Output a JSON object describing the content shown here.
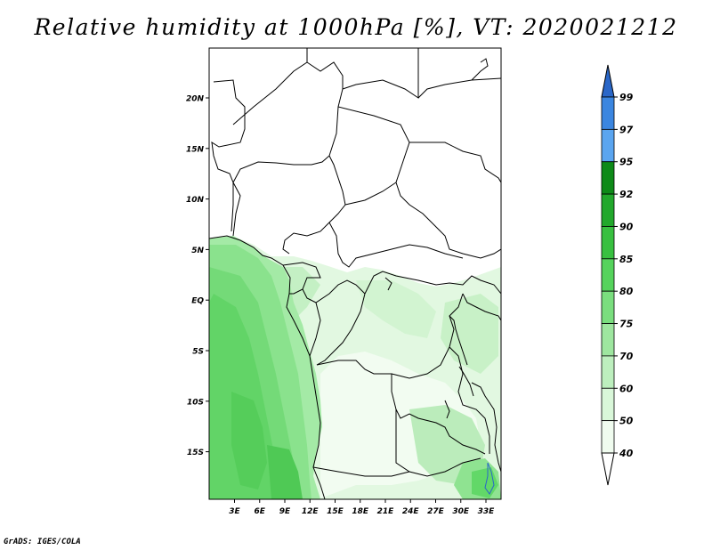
{
  "title": "Relative humidity at 1000hPa [%], VT: 2020021212",
  "credit": "GrADS: IGES/COLA",
  "map": {
    "lat_range": [
      -19.5,
      24.5
    ],
    "lon_range": [
      0,
      33.8
    ],
    "lat_ticks": [
      "20N",
      "15N",
      "10N",
      "5N",
      "EQ",
      "5S",
      "10S",
      "15S"
    ],
    "lon_ticks": [
      "3E",
      "6E",
      "9E",
      "12E",
      "15E",
      "18E",
      "21E",
      "24E",
      "27E",
      "30E",
      "33E"
    ]
  },
  "colorbar": {
    "labels": [
      "99",
      "97",
      "95",
      "92",
      "90",
      "85",
      "80",
      "75",
      "70",
      "60",
      "50",
      "40"
    ],
    "colors": {
      "99": "#2a67c8",
      "97": "#3b86e0",
      "95": "#5aa5f0",
      "92": "#0e8a18",
      "90": "#22a82c",
      "85": "#38c040",
      "80": "#55d35c",
      "75": "#7ade7e",
      "70": "#9ee69f",
      "60": "#bdefbe",
      "50": "#d9f7d9",
      "40": "#f0fcef"
    },
    "lower_arrow_color": "#ffffff",
    "upper_arrow_color": "#2a67c8"
  }
}
